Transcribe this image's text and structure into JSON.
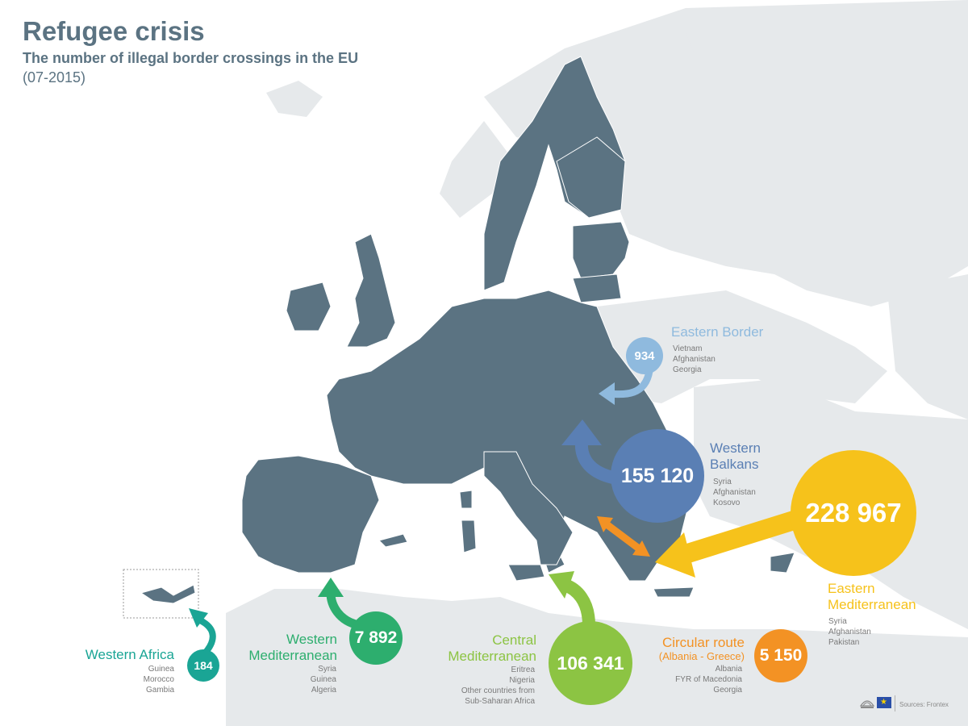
{
  "header": {
    "title": "Refugee crisis",
    "subtitle": "The number of illegal border crossings in the EU",
    "period": "(07-2015)"
  },
  "routes": {
    "eastern_border": {
      "name": "Eastern Border",
      "value": "934",
      "countries": [
        "Vietnam",
        "Afghanistan",
        "Georgia"
      ],
      "color": "#8fbade"
    },
    "western_balkans": {
      "name_line1": "Western",
      "name_line2": "Balkans",
      "value": "155 120",
      "countries": [
        "Syria",
        "Afghanistan",
        "Kosovo"
      ],
      "color": "#5a7fb4"
    },
    "eastern_mediterranean": {
      "name_line1": "Eastern",
      "name_line2": "Mediterranean",
      "value": "228 967",
      "countries": [
        "Syria",
        "Afghanistan",
        "Pakistan"
      ],
      "color": "#f6c21b"
    },
    "circular_route": {
      "name": "Circular route",
      "name_sub": "(Albania - Greece)",
      "value": "5 150",
      "countries": [
        "Albania",
        "FYR of Macedonia",
        "Georgia"
      ],
      "color": "#f39224"
    },
    "central_mediterranean": {
      "name_line1": "Central",
      "name_line2": "Mediterranean",
      "value": "106 341",
      "countries": [
        "Eritrea",
        "Nigeria",
        "Other countries from",
        "Sub-Saharan Africa"
      ],
      "color": "#8cc443"
    },
    "western_mediterranean": {
      "name_line1": "Western",
      "name_line2": "Mediterranean",
      "value": "7 892",
      "countries": [
        "Syria",
        "Guinea",
        "Algeria"
      ],
      "color": "#2dae6e"
    },
    "western_africa": {
      "name": "Western Africa",
      "value": "184",
      "countries": [
        "Guinea",
        "Morocco",
        "Gambia"
      ],
      "color": "#1aa595"
    }
  },
  "colors": {
    "eu_land": "#5b7382",
    "other_land": "#e6e9eb",
    "sea": "#ffffff"
  },
  "footer": {
    "source": "Sources: Frontex"
  }
}
